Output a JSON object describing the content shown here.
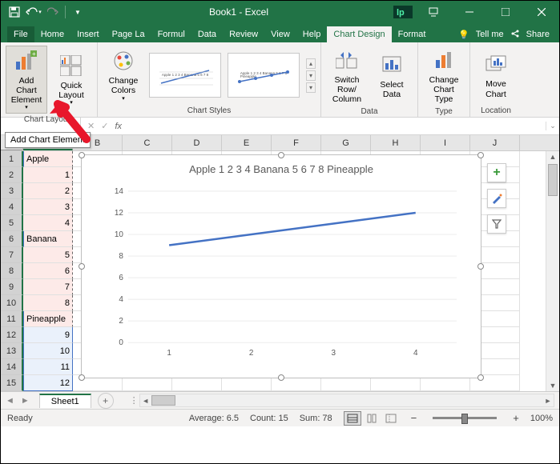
{
  "titlebar": {
    "title": "Book1 - Excel"
  },
  "menu": {
    "file": "File",
    "tabs": [
      "Home",
      "Insert",
      "Page La",
      "Formul",
      "Data",
      "Review",
      "View",
      "Help",
      "Chart Design",
      "Format"
    ],
    "active": "Chart Design",
    "tellme": "Tell me",
    "share": "Share"
  },
  "ribbon": {
    "add_element": "Add Chart\nElement",
    "quick_layout": "Quick\nLayout",
    "change_colors": "Change\nColors",
    "layouts_label": "Chart Layouts",
    "styles_label": "Chart Styles",
    "switch": "Switch Row/\nColumn",
    "select_data": "Select\nData",
    "data_label": "Data",
    "change_type": "Change\nChart Type",
    "type_label": "Type",
    "move_chart": "Move\nChart",
    "location_label": "Location"
  },
  "tooltip": "Add Chart Element",
  "formula": {
    "name_box": "",
    "fx": "fx"
  },
  "grid": {
    "cols": [
      "A",
      "B",
      "C",
      "D",
      "E",
      "F",
      "G",
      "H",
      "I",
      "J"
    ],
    "rows": 15,
    "data": {
      "1": {
        "A": "Apple"
      },
      "2": {
        "A": "1"
      },
      "3": {
        "A": "2"
      },
      "4": {
        "A": "3"
      },
      "5": {
        "A": "4"
      },
      "6": {
        "A": "Banana"
      },
      "7": {
        "A": "5"
      },
      "8": {
        "A": "6"
      },
      "9": {
        "A": "7"
      },
      "10": {
        "A": "8"
      },
      "11": {
        "A": "Pineapple"
      },
      "12": {
        "A": "9"
      },
      "13": {
        "A": "10"
      },
      "14": {
        "A": "11"
      },
      "15": {
        "A": "12"
      }
    },
    "text_rows": [
      1,
      6,
      11
    ],
    "sel1_rows": [
      1,
      2,
      3,
      4,
      5,
      6,
      7,
      8,
      9,
      10,
      11
    ],
    "sel2_rows": [
      12,
      13,
      14,
      15
    ]
  },
  "chart": {
    "title": "Apple 1 2 3 4 Banana 5 6 7 8 Pineapple",
    "type": "line",
    "x_ticks": [
      1,
      2,
      3,
      4
    ],
    "y_ticks": [
      0,
      2,
      4,
      6,
      8,
      10,
      12,
      14
    ],
    "ylim": [
      0,
      14
    ],
    "xlim": [
      0.5,
      4.5
    ],
    "series": [
      {
        "points": [
          [
            1,
            9
          ],
          [
            2,
            10
          ],
          [
            3,
            11
          ],
          [
            4,
            12
          ]
        ],
        "color": "#4472c4",
        "width": 2.5
      }
    ],
    "tick_fontsize": 10,
    "tick_color": "#595959",
    "grid_color": "#d9d9d9",
    "background": "#ffffff"
  },
  "sheets": {
    "active": "Sheet1"
  },
  "status": {
    "ready": "Ready",
    "average": "Average: 6.5",
    "count": "Count: 15",
    "sum": "Sum: 78",
    "zoom": "100%"
  },
  "colors": {
    "accent": "#217346",
    "chart_line": "#4472c4",
    "arrow": "#e8172b"
  }
}
